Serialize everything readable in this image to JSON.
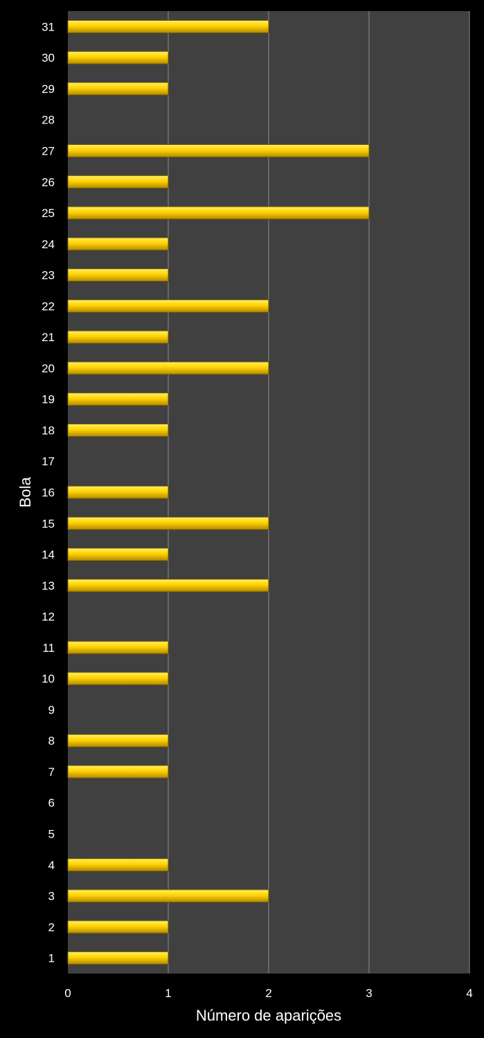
{
  "chart_data": {
    "type": "bar",
    "orientation": "horizontal",
    "title": "",
    "xlabel": "Número de aparições",
    "ylabel": "Bola",
    "xlim": [
      0,
      4
    ],
    "x_ticks": [
      "0",
      "1",
      "2",
      "3",
      "4"
    ],
    "grid": true,
    "legend": "none",
    "categories": [
      "1",
      "2",
      "3",
      "4",
      "5",
      "6",
      "7",
      "8",
      "9",
      "10",
      "11",
      "12",
      "13",
      "14",
      "15",
      "16",
      "17",
      "18",
      "19",
      "20",
      "21",
      "22",
      "23",
      "24",
      "25",
      "26",
      "27",
      "28",
      "29",
      "30",
      "31"
    ],
    "values": [
      1,
      1,
      2,
      1,
      0,
      0,
      1,
      1,
      0,
      1,
      1,
      0,
      2,
      1,
      2,
      1,
      0,
      1,
      1,
      2,
      1,
      2,
      1,
      1,
      3,
      1,
      3,
      0,
      1,
      1,
      2
    ],
    "colors": {
      "background": "#000000",
      "plot_area": "#404040",
      "gridline": "#8c8c8c",
      "bar_fill_top": "#fff066",
      "bar_fill_mid": "#ffd200",
      "bar_fill_bottom": "#b38a00",
      "bar_stroke": "#7a5c00",
      "text": "#ffffff"
    }
  }
}
